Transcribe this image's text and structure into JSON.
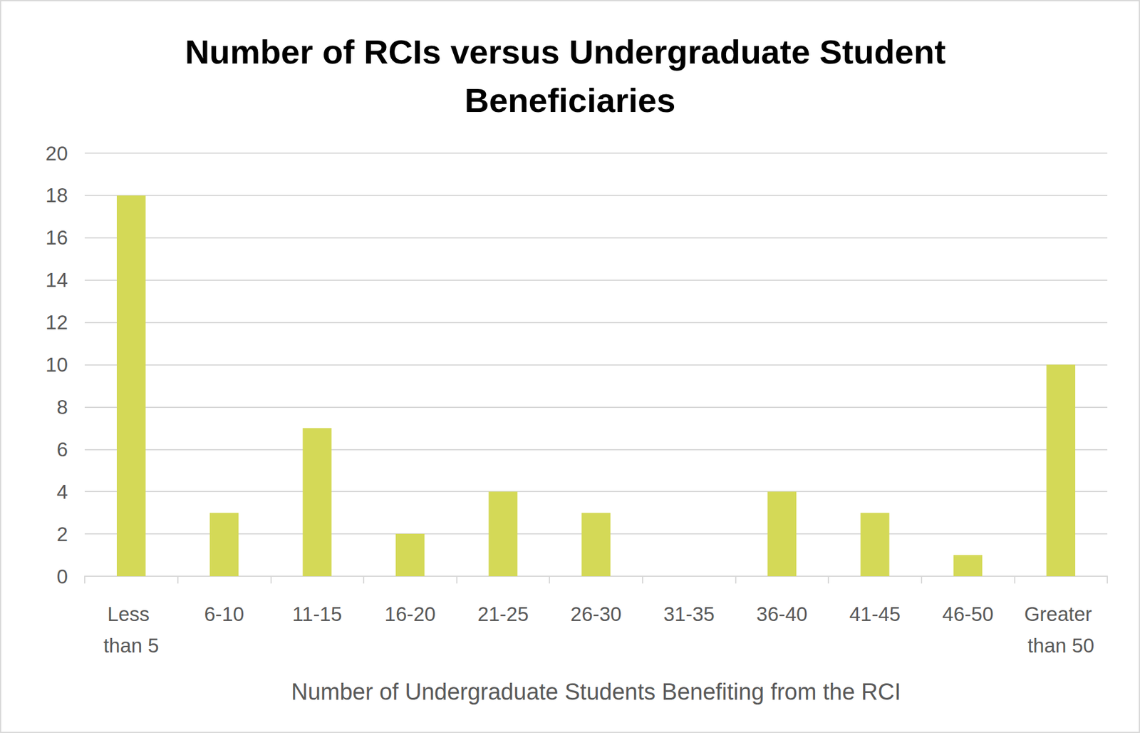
{
  "chart_data": {
    "type": "bar",
    "title": "Number of RCIs versus Undergraduate Student Beneficiaries",
    "x_label": "Number of Undergraduate Students Benefiting from the RCI",
    "categories": [
      "Less than 5",
      "6-10",
      "11-15",
      "16-20",
      "21-25",
      "26-30",
      "31-35",
      "36-40",
      "41-45",
      "46-50",
      "Greater than 50"
    ],
    "values": [
      18,
      3,
      7,
      2,
      4,
      3,
      0,
      4,
      3,
      1,
      10
    ],
    "color": "#d4d957",
    "ylim": [
      0,
      20
    ],
    "yticks": [
      0,
      2,
      4,
      6,
      8,
      10,
      12,
      14,
      16,
      18,
      20
    ],
    "grid": true
  }
}
